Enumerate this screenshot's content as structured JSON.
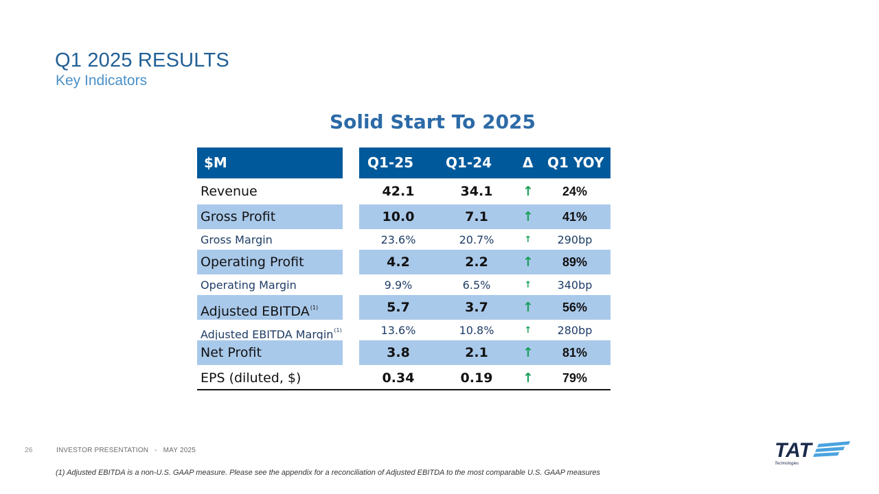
{
  "header": {
    "title": "Q1 2025 RESULTS",
    "subtitle": "Key Indicators"
  },
  "headline": "Solid Start To 2025",
  "table": {
    "columns": {
      "label": "$M",
      "q1_25": "Q1-25",
      "q1_24": "Q1-24",
      "delta": "Δ",
      "yoy": "Q1 YOY"
    },
    "arrow": "↑",
    "rows": [
      {
        "label": "Revenue",
        "q1_25": "42.1",
        "q1_24": "34.1",
        "yoy": "24%"
      },
      {
        "label": "Gross Profit",
        "q1_25": "10.0",
        "q1_24": "7.1",
        "yoy": "41%"
      },
      {
        "label": "Gross Margin",
        "q1_25": "23.6%",
        "q1_24": "20.7%",
        "yoy": "290bp"
      },
      {
        "label": "Operating Profit",
        "q1_25": "4.2",
        "q1_24": "2.2",
        "yoy": "89%"
      },
      {
        "label": "Operating Margin",
        "q1_25": "9.9%",
        "q1_24": "6.5%",
        "yoy": "340bp"
      },
      {
        "label": "Adjusted EBITDA",
        "note": "(1)",
        "q1_25": "5.7",
        "q1_24": "3.7",
        "yoy": "56%"
      },
      {
        "label": "Adjusted EBITDA Margin",
        "note": "(1)",
        "q1_25": "13.6%",
        "q1_24": "10.8%",
        "yoy": "280bp"
      },
      {
        "label": "Net Profit",
        "q1_25": "3.8",
        "q1_24": "2.1",
        "yoy": "81%"
      },
      {
        "label": "EPS (diluted, $)",
        "q1_25": "0.34",
        "q1_24": "0.19",
        "yoy": "79%"
      }
    ]
  },
  "footer": {
    "page_number": "26",
    "presentation": "INVESTOR PRESENTATION   -   MAY 2025",
    "footnote": "(1) Adjusted EBITDA is a non-U.S. GAAP measure. Please see the appendix for a reconciliation of Adjusted EBITDA to the most comparable U.S. GAAP measures"
  },
  "logo": {
    "wordmark": "TAT",
    "tagline": "Technologies",
    "color": "#1b2a4a",
    "accent": "#4aa3df"
  },
  "colors": {
    "header_fill": "#00599b",
    "row_shade": "#a9c9ea",
    "title": "#1f5f95",
    "arrow_up": "#1aa05a"
  }
}
